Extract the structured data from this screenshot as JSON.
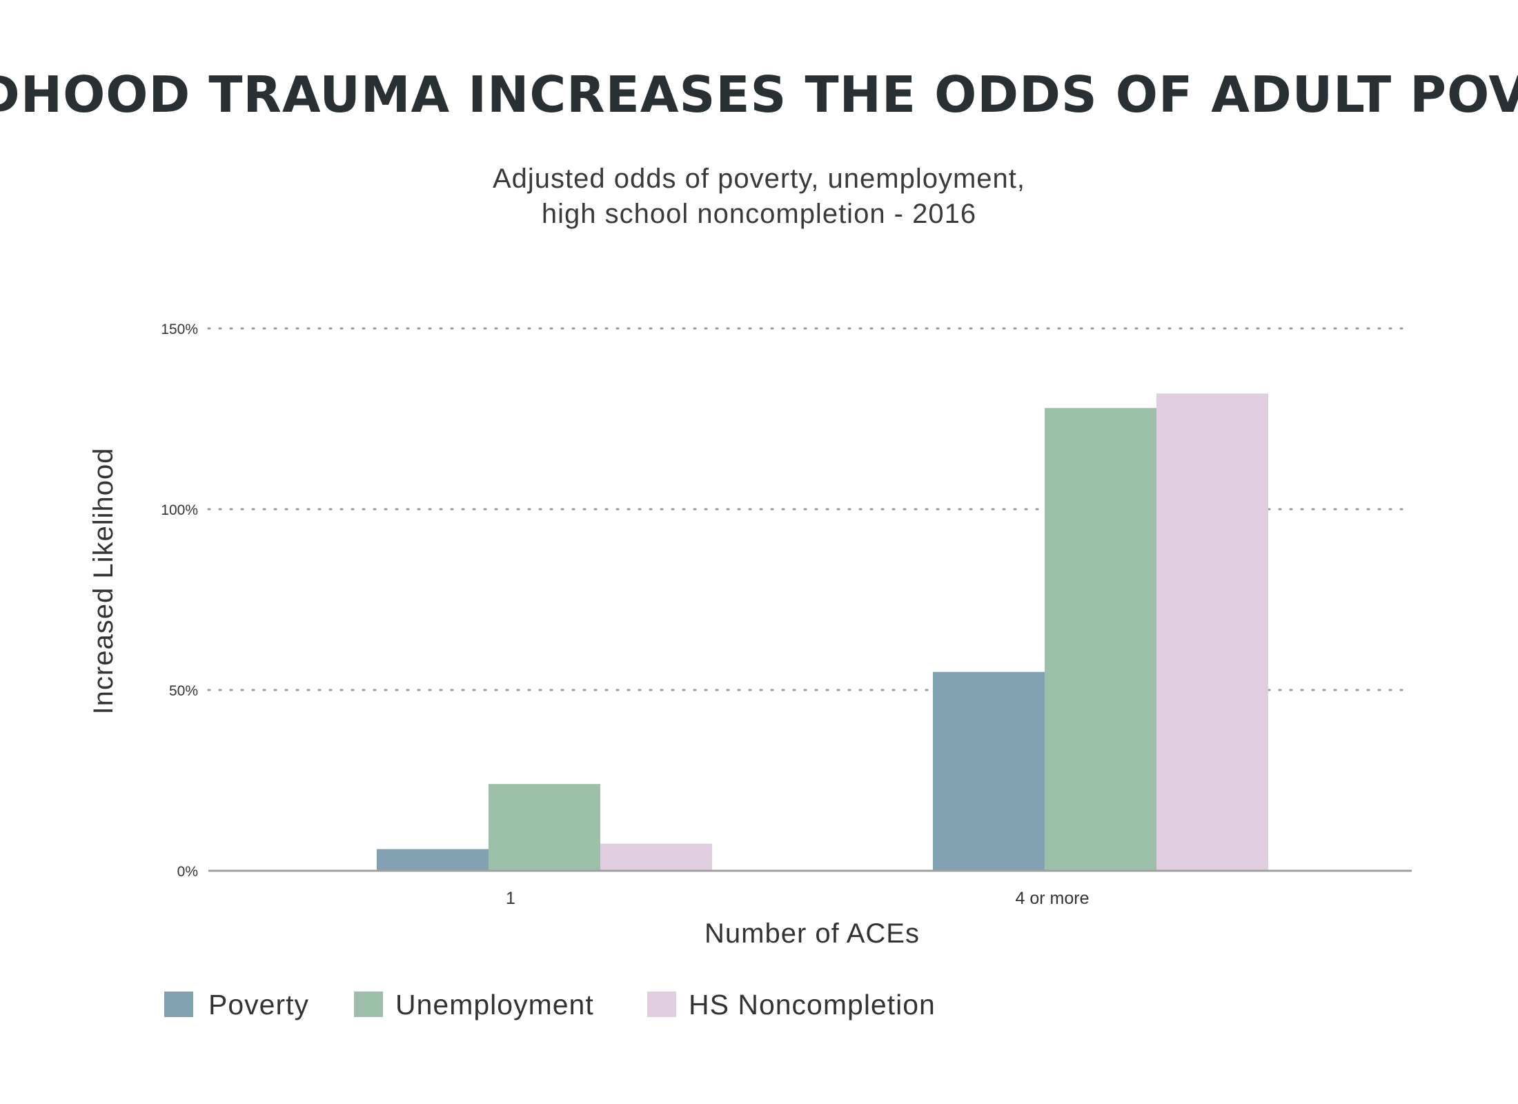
{
  "chart_data": {
    "type": "bar",
    "title": "CHILDHOOD TRAUMA INCREASES THE ODDS OF ADULT POVERTY",
    "subtitle_lines": [
      "Adjusted odds of poverty, unemployment,",
      "high school noncompletion - 2016"
    ],
    "xlabel": "Number of ACEs",
    "ylabel": "Increased Likelihood",
    "categories": [
      "1",
      "4 or more"
    ],
    "series": [
      {
        "name": "Poverty",
        "values": [
          6,
          55
        ],
        "color": "#82a1b2"
      },
      {
        "name": "Unemployment",
        "values": [
          24,
          128
        ],
        "color": "#9cbfaa"
      },
      {
        "name": "HS Noncompletion",
        "values": [
          7.5,
          132
        ],
        "color": "#e1cde0"
      }
    ],
    "ylim": [
      0,
      150
    ],
    "yticks": [
      {
        "value": 0,
        "label": "0%"
      },
      {
        "value": 50,
        "label": "50%"
      },
      {
        "value": 100,
        "label": "100%"
      },
      {
        "value": 150,
        "label": "150%"
      }
    ],
    "grid": true,
    "legend_position": "bottom-left"
  }
}
